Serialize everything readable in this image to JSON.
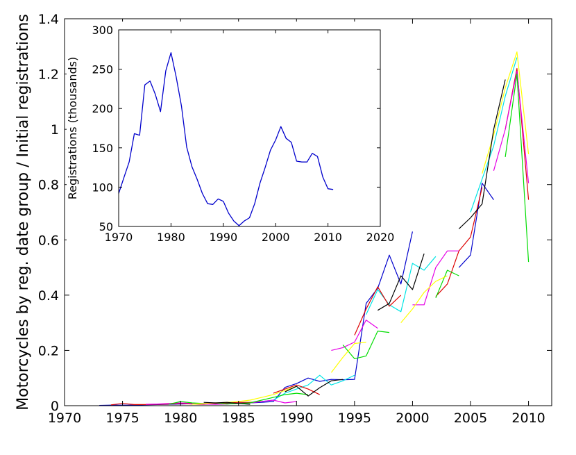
{
  "chart_data": [
    {
      "type": "line",
      "role": "main",
      "ylabel": "Motorcycles by reg. date group / Initial registrations",
      "xlim": [
        1970,
        2012
      ],
      "ylim": [
        0,
        1.4
      ],
      "xticks": [
        "1970",
        "1975",
        "1980",
        "1985",
        "1990",
        "1995",
        "2000",
        "2005",
        "2010"
      ],
      "yticks": [
        "0",
        "0.2",
        "0.4",
        "0.6",
        "0.8",
        "1",
        "1.2",
        "1.4"
      ],
      "series": [
        {
          "color": "#0000cc",
          "x": [
            1973,
            1974,
            1975,
            1976,
            1977,
            1978,
            1979,
            1980,
            1981,
            1982,
            1983,
            1984,
            1985,
            1986,
            1987,
            1988,
            1989,
            1990,
            1991,
            1992,
            1993,
            1994,
            1995,
            1996,
            1997,
            1998,
            1999,
            2000
          ],
          "y": [
            0.001,
            0.002,
            0.002,
            0.002,
            0.003,
            0.004,
            0.005,
            0.006,
            0.007,
            0.008,
            0.008,
            0.009,
            0.009,
            0.01,
            0.012,
            0.015,
            0.066,
            0.08,
            0.1,
            0.088,
            0.095,
            0.094,
            0.095,
            0.37,
            0.425,
            0.545,
            0.44,
            0.63
          ]
        },
        {
          "color": "#0000cc",
          "x": [
            2004,
            2005,
            2006,
            2007
          ],
          "y": [
            0.5,
            0.545,
            0.805,
            0.745
          ]
        },
        {
          "color": "#00e5e5",
          "x": [
            1987,
            1988,
            1989,
            1990,
            1991,
            1992,
            1993,
            1994,
            1995
          ],
          "y": [
            0.015,
            0.02,
            0.045,
            0.06,
            0.075,
            0.11,
            0.075,
            0.09,
            0.11
          ]
        },
        {
          "color": "#00e5e5",
          "x": [
            1996,
            1997,
            1998,
            1999,
            2000,
            2001,
            2002
          ],
          "y": [
            0.33,
            0.42,
            0.365,
            0.34,
            0.515,
            0.49,
            0.54
          ]
        },
        {
          "color": "#00e5e5",
          "x": [
            2005,
            2006,
            2007,
            2008,
            2009
          ],
          "y": [
            0.7,
            0.82,
            0.94,
            1.12,
            1.26
          ]
        },
        {
          "color": "#dd0000",
          "x": [
            1974,
            1975,
            1976,
            1977,
            1978,
            1979,
            1980,
            1981,
            1982,
            1983,
            1984,
            1985,
            1986,
            1987
          ],
          "y": [
            0.003,
            0.008,
            0.004,
            0.004,
            0.005,
            0.006,
            0.008,
            0.006,
            0.005,
            0.008,
            0.01,
            0.012,
            0.012,
            0.015
          ]
        },
        {
          "color": "#dd0000",
          "x": [
            1988,
            1989,
            1990,
            1991,
            1992
          ],
          "y": [
            0.045,
            0.06,
            0.075,
            0.06,
            0.04
          ]
        },
        {
          "color": "#dd0000",
          "x": [
            1995,
            1996,
            1997,
            1998,
            1999
          ],
          "y": [
            0.255,
            0.35,
            0.43,
            0.36,
            0.4
          ]
        },
        {
          "color": "#dd0000",
          "x": [
            2002,
            2003,
            2004,
            2005,
            2006
          ],
          "y": [
            0.395,
            0.44,
            0.56,
            0.61,
            0.79
          ]
        },
        {
          "color": "#dd0000",
          "x": [
            2008,
            2009,
            2010
          ],
          "y": [
            1.0,
            1.22,
            0.745
          ]
        },
        {
          "color": "#e600e6",
          "x": [
            1977,
            1978,
            1979,
            1980,
            1981,
            1982,
            1983,
            1984,
            1985,
            1986,
            1987,
            1988,
            1989,
            1990
          ],
          "y": [
            0.005,
            0.006,
            0.008,
            0.01,
            0.008,
            0.006,
            0.005,
            0.006,
            0.008,
            0.01,
            0.015,
            0.02,
            0.01,
            0.015
          ]
        },
        {
          "color": "#e600e6",
          "x": [
            1993,
            1994,
            1995,
            1996,
            1997
          ],
          "y": [
            0.2,
            0.21,
            0.23,
            0.31,
            0.28
          ]
        },
        {
          "color": "#e600e6",
          "x": [
            2000,
            2001,
            2002,
            2003,
            2004
          ],
          "y": [
            0.365,
            0.365,
            0.5,
            0.56,
            0.56
          ]
        },
        {
          "color": "#e600e6",
          "x": [
            2007,
            2008,
            2009,
            2010
          ],
          "y": [
            0.85,
            1.0,
            1.21,
            0.805
          ]
        },
        {
          "color": "#00dd00",
          "x": [
            1979,
            1980,
            1981,
            1982,
            1983,
            1984,
            1985,
            1986,
            1987,
            1988,
            1989,
            1990,
            1991
          ],
          "y": [
            0.005,
            0.015,
            0.01,
            0.008,
            0.01,
            0.006,
            0.008,
            0.01,
            0.02,
            0.03,
            0.04,
            0.045,
            0.04
          ]
        },
        {
          "color": "#00dd00",
          "x": [
            1994,
            1995,
            1996,
            1997,
            1998
          ],
          "y": [
            0.22,
            0.17,
            0.18,
            0.27,
            0.265
          ]
        },
        {
          "color": "#00dd00",
          "x": [
            2002,
            2003,
            2004
          ],
          "y": [
            0.39,
            0.49,
            0.47
          ]
        },
        {
          "color": "#00dd00",
          "x": [
            2008,
            2009,
            2010
          ],
          "y": [
            0.9,
            1.2,
            0.52
          ]
        },
        {
          "color": "#ffff00",
          "x": [
            1981,
            1982,
            1983,
            1984,
            1985,
            1986,
            1987,
            1988,
            1989,
            1990
          ],
          "y": [
            0.005,
            0.008,
            0.01,
            0.012,
            0.015,
            0.02,
            0.03,
            0.04,
            0.055,
            0.07
          ]
        },
        {
          "color": "#ffff00",
          "x": [
            1993,
            1994,
            1995,
            1996
          ],
          "y": [
            0.12,
            0.175,
            0.225,
            0.23
          ]
        },
        {
          "color": "#ffff00",
          "x": [
            1999,
            2000,
            2001,
            2002,
            2003
          ],
          "y": [
            0.3,
            0.35,
            0.41,
            0.45,
            0.47
          ]
        },
        {
          "color": "#ffff00",
          "x": [
            2006,
            2007,
            2008,
            2009,
            2010
          ],
          "y": [
            0.84,
            0.98,
            1.15,
            1.28,
            0.91
          ]
        },
        {
          "color": "#000000",
          "x": [
            1982,
            1983,
            1984,
            1985,
            1986
          ],
          "y": [
            0.012,
            0.01,
            0.012,
            0.008,
            0.005
          ]
        },
        {
          "color": "#000000",
          "x": [
            1989,
            1990,
            1991,
            1992,
            1993,
            1994
          ],
          "y": [
            0.05,
            0.07,
            0.035,
            0.065,
            0.09,
            0.095
          ]
        },
        {
          "color": "#000000",
          "x": [
            1997,
            1998,
            1999,
            2000,
            2001
          ],
          "y": [
            0.345,
            0.37,
            0.47,
            0.42,
            0.55
          ]
        },
        {
          "color": "#000000",
          "x": [
            2004,
            2005,
            2006,
            2007,
            2008
          ],
          "y": [
            0.64,
            0.68,
            0.73,
            1.0,
            1.18
          ]
        }
      ]
    },
    {
      "type": "line",
      "role": "inset",
      "ylabel": "Registrations (thousands)",
      "xlim": [
        1970,
        2020
      ],
      "ylim": [
        50,
        300
      ],
      "xticks": [
        "1970",
        "1980",
        "1990",
        "2000",
        "2010",
        "2020"
      ],
      "yticks": [
        "50",
        "100",
        "150",
        "200",
        "250",
        "300"
      ],
      "series": [
        {
          "color": "#0000cc",
          "x": [
            1970,
            1971,
            1972,
            1973,
            1974,
            1975,
            1976,
            1977,
            1978,
            1979,
            1980,
            1981,
            1982,
            1983,
            1984,
            1985,
            1986,
            1987,
            1988,
            1989,
            1990,
            1991,
            1992,
            1993,
            1994,
            1995,
            1996,
            1997,
            1998,
            1999,
            2000,
            2001,
            2002,
            2003,
            2004,
            2005,
            2006,
            2007,
            2008,
            2009,
            2010,
            2011
          ],
          "y": [
            92,
            112,
            132,
            168,
            166,
            230,
            235,
            218,
            196,
            248,
            271,
            240,
            203,
            151,
            126,
            110,
            92,
            79,
            78,
            85,
            82,
            67,
            57,
            51,
            57,
            61,
            79,
            105,
            125,
            147,
            160,
            177,
            162,
            157,
            133,
            132,
            132,
            143,
            139,
            113,
            98,
            97
          ]
        }
      ]
    }
  ]
}
